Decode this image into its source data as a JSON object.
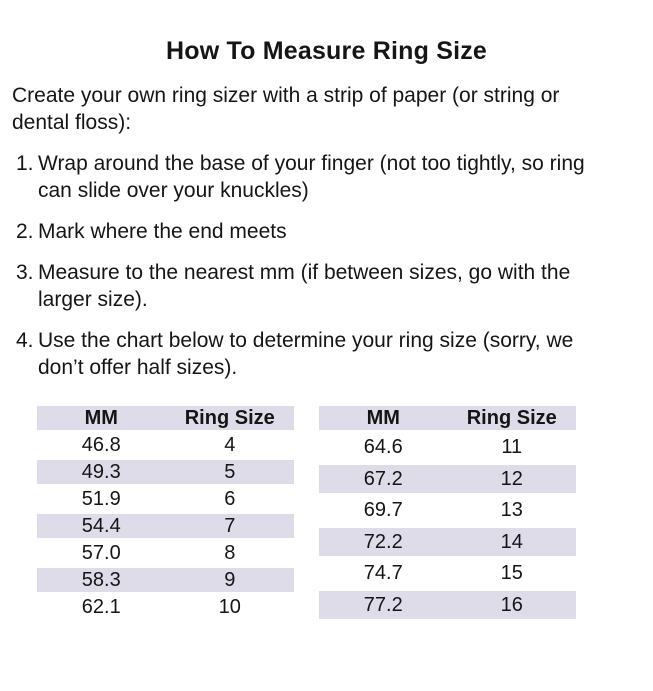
{
  "page": {
    "title": "How To Measure Ring Size",
    "intro": "Create your own ring sizer with a strip of paper (or string or dental floss):",
    "steps": [
      {
        "num": "1.",
        "text": "Wrap around the base of your finger (not too tightly, so ring can slide over your knuckles)"
      },
      {
        "num": "2.",
        "text": "Mark where the end meets"
      },
      {
        "num": "3.",
        "text": "Measure to the nearest mm (if between sizes, go with the larger size)."
      },
      {
        "num": "4.",
        "text": "Use the chart below to determine your ring size (sorry, we don’t offer half sizes)."
      }
    ]
  },
  "size_chart": {
    "type": "table",
    "columns": [
      "MM",
      "Ring Size"
    ],
    "tables": [
      {
        "rows": [
          [
            "46.8",
            "4"
          ],
          [
            "49.3",
            "5"
          ],
          [
            "51.9",
            "6"
          ],
          [
            "54.4",
            "7"
          ],
          [
            "57.0",
            "8"
          ],
          [
            "58.3",
            "9"
          ],
          [
            "62.1",
            "10"
          ]
        ]
      },
      {
        "rows": [
          [
            "64.6",
            "11"
          ],
          [
            "67.2",
            "12"
          ],
          [
            "69.7",
            "13"
          ],
          [
            "72.2",
            "14"
          ],
          [
            "74.7",
            "15"
          ],
          [
            "77.2",
            "16"
          ]
        ]
      }
    ]
  },
  "colors": {
    "row_shade": "#dedce8",
    "text": "#151515",
    "background": "#ffffff"
  }
}
